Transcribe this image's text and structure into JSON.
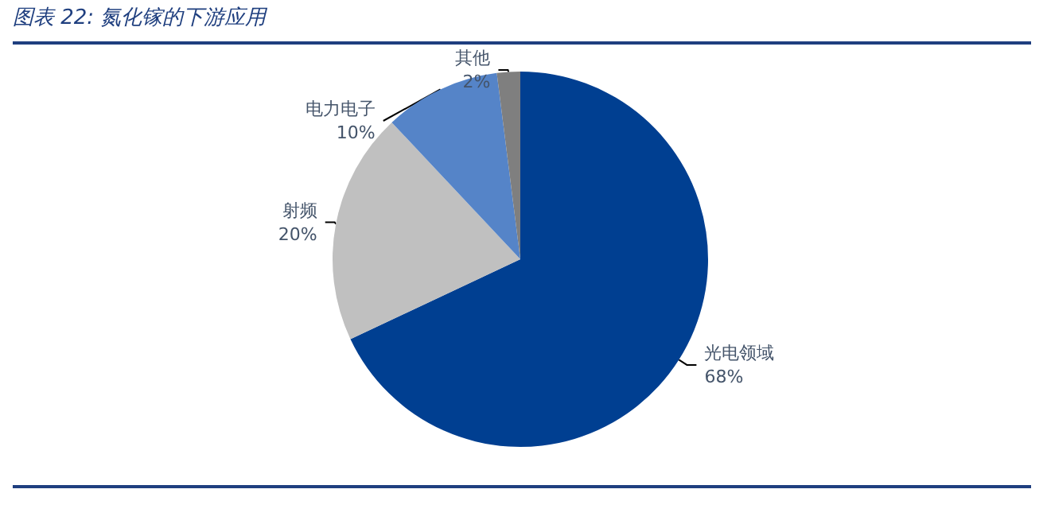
{
  "chart_data": {
    "type": "pie",
    "title": "图表 22: 氮化镓的下游应用",
    "categories": [
      "光电领域",
      "射频",
      "电力电子",
      "其他"
    ],
    "values": [
      68,
      20,
      10,
      2
    ],
    "colors": [
      "#003f91",
      "#c0c0c0",
      "#5584c8",
      "#7f7f7f"
    ],
    "value_labels": [
      "68%",
      "20%",
      "10%",
      "2%"
    ],
    "legend": false
  }
}
